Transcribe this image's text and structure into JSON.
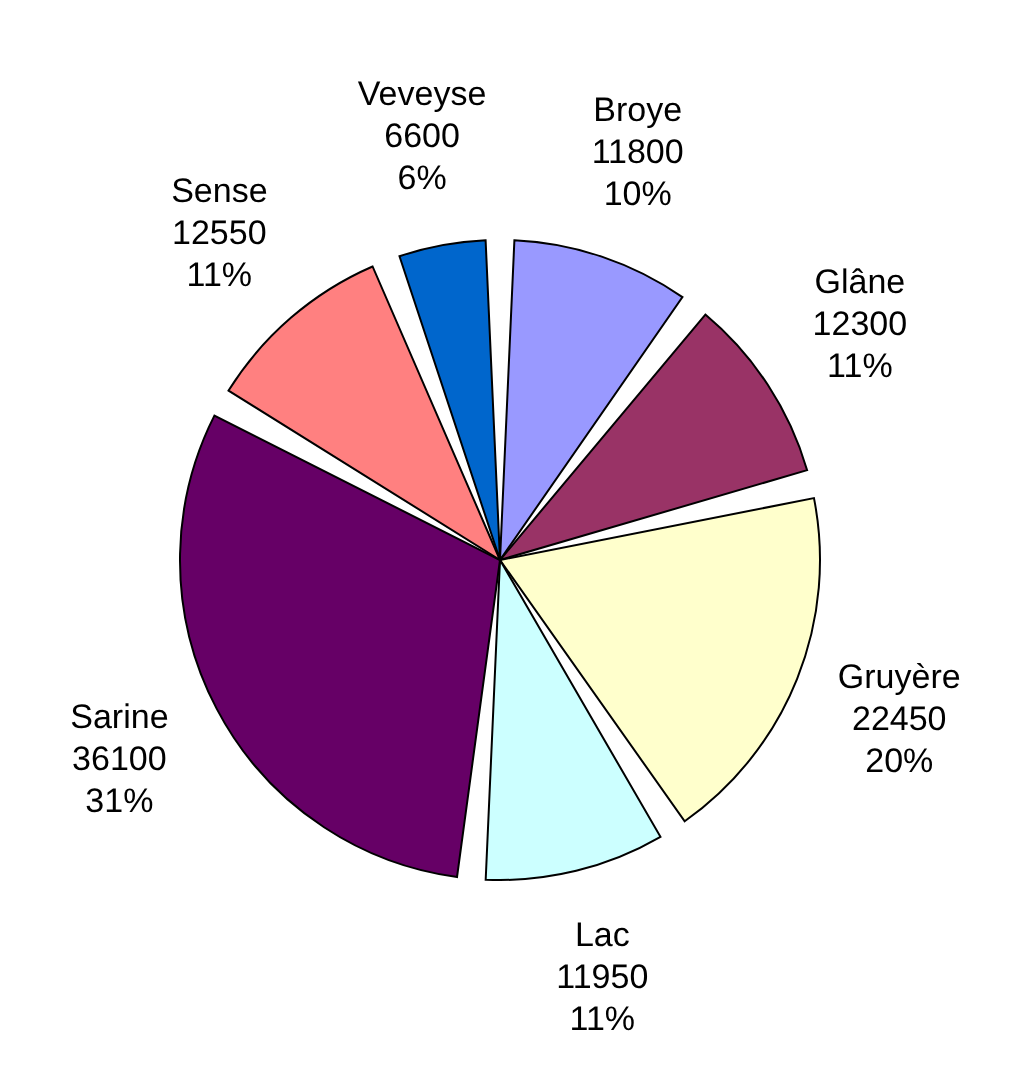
{
  "chart_data": {
    "type": "pie",
    "categories": [
      "Broye",
      "Glâne",
      "Gruyère",
      "Lac",
      "Sarine",
      "Sense",
      "Veveyse"
    ],
    "values": [
      11800,
      12300,
      22450,
      11950,
      36100,
      12550,
      6600
    ],
    "colors": [
      "#9999ff",
      "#993366",
      "#ffffcc",
      "#ccffff",
      "#660066",
      "#ff8080",
      "#0066cc"
    ],
    "data_labels": true,
    "annotations": [
      "10%",
      "11%",
      "20%",
      "11%",
      "31%",
      "11%",
      "6%"
    ]
  }
}
